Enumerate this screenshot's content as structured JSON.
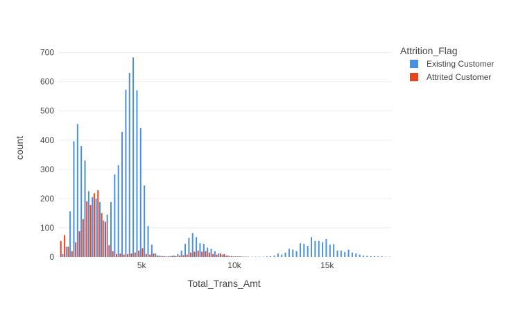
{
  "chart_data": {
    "type": "bar",
    "title": "",
    "xlabel": "Total_Trans_Amt",
    "ylabel": "count",
    "xlim": [
      510,
      18484
    ],
    "ylim": [
      0,
      737
    ],
    "bin_width": 200,
    "bar_group_mode": "overlay-grouped",
    "grid": true,
    "x_ticks": [
      {
        "value": 5000,
        "label": "5k"
      },
      {
        "value": 10000,
        "label": "10k"
      },
      {
        "value": 15000,
        "label": "15k"
      }
    ],
    "y_ticks": [
      {
        "value": 0,
        "label": "0"
      },
      {
        "value": 100,
        "label": "100"
      },
      {
        "value": 200,
        "label": "200"
      },
      {
        "value": 300,
        "label": "300"
      },
      {
        "value": 400,
        "label": "400"
      },
      {
        "value": 500,
        "label": "500"
      },
      {
        "value": 600,
        "label": "600"
      },
      {
        "value": 700,
        "label": "700"
      }
    ],
    "legend": {
      "title": "Attrition_Flag",
      "placement": "top-right"
    },
    "series": [
      {
        "name": "Existing Customer",
        "color": "#4a90e2",
        "bins": [
          {
            "x": 600,
            "y": 0
          },
          {
            "x": 800,
            "y": 10
          },
          {
            "x": 1000,
            "y": 35
          },
          {
            "x": 1200,
            "y": 156
          },
          {
            "x": 1400,
            "y": 396
          },
          {
            "x": 1600,
            "y": 455
          },
          {
            "x": 1800,
            "y": 380
          },
          {
            "x": 2000,
            "y": 330
          },
          {
            "x": 2200,
            "y": 225
          },
          {
            "x": 2400,
            "y": 205
          },
          {
            "x": 2600,
            "y": 200
          },
          {
            "x": 2800,
            "y": 188
          },
          {
            "x": 3000,
            "y": 125
          },
          {
            "x": 3200,
            "y": 145
          },
          {
            "x": 3400,
            "y": 188
          },
          {
            "x": 3600,
            "y": 282
          },
          {
            "x": 3800,
            "y": 314
          },
          {
            "x": 4000,
            "y": 428
          },
          {
            "x": 4200,
            "y": 572
          },
          {
            "x": 4400,
            "y": 630
          },
          {
            "x": 4600,
            "y": 683
          },
          {
            "x": 4800,
            "y": 570
          },
          {
            "x": 5000,
            "y": 442
          },
          {
            "x": 5200,
            "y": 245
          },
          {
            "x": 5400,
            "y": 106
          },
          {
            "x": 5600,
            "y": 42
          },
          {
            "x": 5800,
            "y": 12
          },
          {
            "x": 6000,
            "y": 5
          },
          {
            "x": 6200,
            "y": 3
          },
          {
            "x": 6400,
            "y": 2
          },
          {
            "x": 6600,
            "y": 3
          },
          {
            "x": 6800,
            "y": 5
          },
          {
            "x": 7000,
            "y": 10
          },
          {
            "x": 7200,
            "y": 22
          },
          {
            "x": 7400,
            "y": 45
          },
          {
            "x": 7600,
            "y": 65
          },
          {
            "x": 7800,
            "y": 82
          },
          {
            "x": 8000,
            "y": 68
          },
          {
            "x": 8200,
            "y": 47
          },
          {
            "x": 8400,
            "y": 45
          },
          {
            "x": 8600,
            "y": 32
          },
          {
            "x": 8800,
            "y": 28
          },
          {
            "x": 9000,
            "y": 20
          },
          {
            "x": 9200,
            "y": 12
          },
          {
            "x": 9400,
            "y": 8
          },
          {
            "x": 9600,
            "y": 5
          },
          {
            "x": 9800,
            "y": 3
          },
          {
            "x": 10000,
            "y": 2
          },
          {
            "x": 10200,
            "y": 2
          },
          {
            "x": 10400,
            "y": 2
          },
          {
            "x": 10600,
            "y": 1
          },
          {
            "x": 10800,
            "y": 1
          },
          {
            "x": 11000,
            "y": 1
          },
          {
            "x": 11200,
            "y": 1
          },
          {
            "x": 11400,
            "y": 1
          },
          {
            "x": 11600,
            "y": 1
          },
          {
            "x": 11800,
            "y": 2
          },
          {
            "x": 12000,
            "y": 3
          },
          {
            "x": 12200,
            "y": 5
          },
          {
            "x": 12400,
            "y": 12
          },
          {
            "x": 12600,
            "y": 8
          },
          {
            "x": 12800,
            "y": 15
          },
          {
            "x": 13000,
            "y": 28
          },
          {
            "x": 13200,
            "y": 25
          },
          {
            "x": 13400,
            "y": 20
          },
          {
            "x": 13600,
            "y": 47
          },
          {
            "x": 13800,
            "y": 45
          },
          {
            "x": 14000,
            "y": 38
          },
          {
            "x": 14200,
            "y": 68
          },
          {
            "x": 14400,
            "y": 55
          },
          {
            "x": 14600,
            "y": 55
          },
          {
            "x": 14800,
            "y": 50
          },
          {
            "x": 15000,
            "y": 62
          },
          {
            "x": 15200,
            "y": 42
          },
          {
            "x": 15400,
            "y": 44
          },
          {
            "x": 15600,
            "y": 22
          },
          {
            "x": 15800,
            "y": 22
          },
          {
            "x": 16000,
            "y": 17
          },
          {
            "x": 16200,
            "y": 25
          },
          {
            "x": 16400,
            "y": 15
          },
          {
            "x": 16600,
            "y": 12
          },
          {
            "x": 16800,
            "y": 8
          },
          {
            "x": 17000,
            "y": 5
          },
          {
            "x": 17200,
            "y": 4
          },
          {
            "x": 17400,
            "y": 3
          },
          {
            "x": 17600,
            "y": 3
          },
          {
            "x": 17800,
            "y": 2
          },
          {
            "x": 18000,
            "y": 2
          },
          {
            "x": 18200,
            "y": 1
          },
          {
            "x": 18400,
            "y": 1
          }
        ]
      },
      {
        "name": "Attrited Customer",
        "color": "#e8441f",
        "bins": [
          {
            "x": 600,
            "y": 55
          },
          {
            "x": 800,
            "y": 75
          },
          {
            "x": 1000,
            "y": 35
          },
          {
            "x": 1200,
            "y": 20
          },
          {
            "x": 1400,
            "y": 50
          },
          {
            "x": 1600,
            "y": 88
          },
          {
            "x": 1800,
            "y": 130
          },
          {
            "x": 2000,
            "y": 190
          },
          {
            "x": 2200,
            "y": 178
          },
          {
            "x": 2400,
            "y": 218
          },
          {
            "x": 2600,
            "y": 228
          },
          {
            "x": 2800,
            "y": 150
          },
          {
            "x": 3000,
            "y": 120
          },
          {
            "x": 3200,
            "y": 40
          },
          {
            "x": 3400,
            "y": 20
          },
          {
            "x": 3600,
            "y": 10
          },
          {
            "x": 3800,
            "y": 12
          },
          {
            "x": 4000,
            "y": 8
          },
          {
            "x": 4200,
            "y": 10
          },
          {
            "x": 4400,
            "y": 12
          },
          {
            "x": 4600,
            "y": 15
          },
          {
            "x": 4800,
            "y": 22
          },
          {
            "x": 5000,
            "y": 30
          },
          {
            "x": 5200,
            "y": 10
          },
          {
            "x": 5400,
            "y": 8
          },
          {
            "x": 5600,
            "y": 12
          },
          {
            "x": 5800,
            "y": 5
          },
          {
            "x": 6000,
            "y": 3
          },
          {
            "x": 6200,
            "y": 2
          },
          {
            "x": 6400,
            "y": 2
          },
          {
            "x": 6600,
            "y": 4
          },
          {
            "x": 6800,
            "y": 3
          },
          {
            "x": 7000,
            "y": 5
          },
          {
            "x": 7200,
            "y": 6
          },
          {
            "x": 7400,
            "y": 8
          },
          {
            "x": 7600,
            "y": 15
          },
          {
            "x": 7800,
            "y": 18
          },
          {
            "x": 8000,
            "y": 22
          },
          {
            "x": 8200,
            "y": 18
          },
          {
            "x": 8400,
            "y": 20
          },
          {
            "x": 8600,
            "y": 15
          },
          {
            "x": 8800,
            "y": 10
          },
          {
            "x": 9000,
            "y": 8
          },
          {
            "x": 9200,
            "y": 12
          },
          {
            "x": 9400,
            "y": 10
          },
          {
            "x": 9600,
            "y": 5
          },
          {
            "x": 9800,
            "y": 3
          },
          {
            "x": 10000,
            "y": 2
          },
          {
            "x": 10200,
            "y": 2
          },
          {
            "x": 10400,
            "y": 1
          },
          {
            "x": 10600,
            "y": 1
          }
        ]
      }
    ]
  }
}
